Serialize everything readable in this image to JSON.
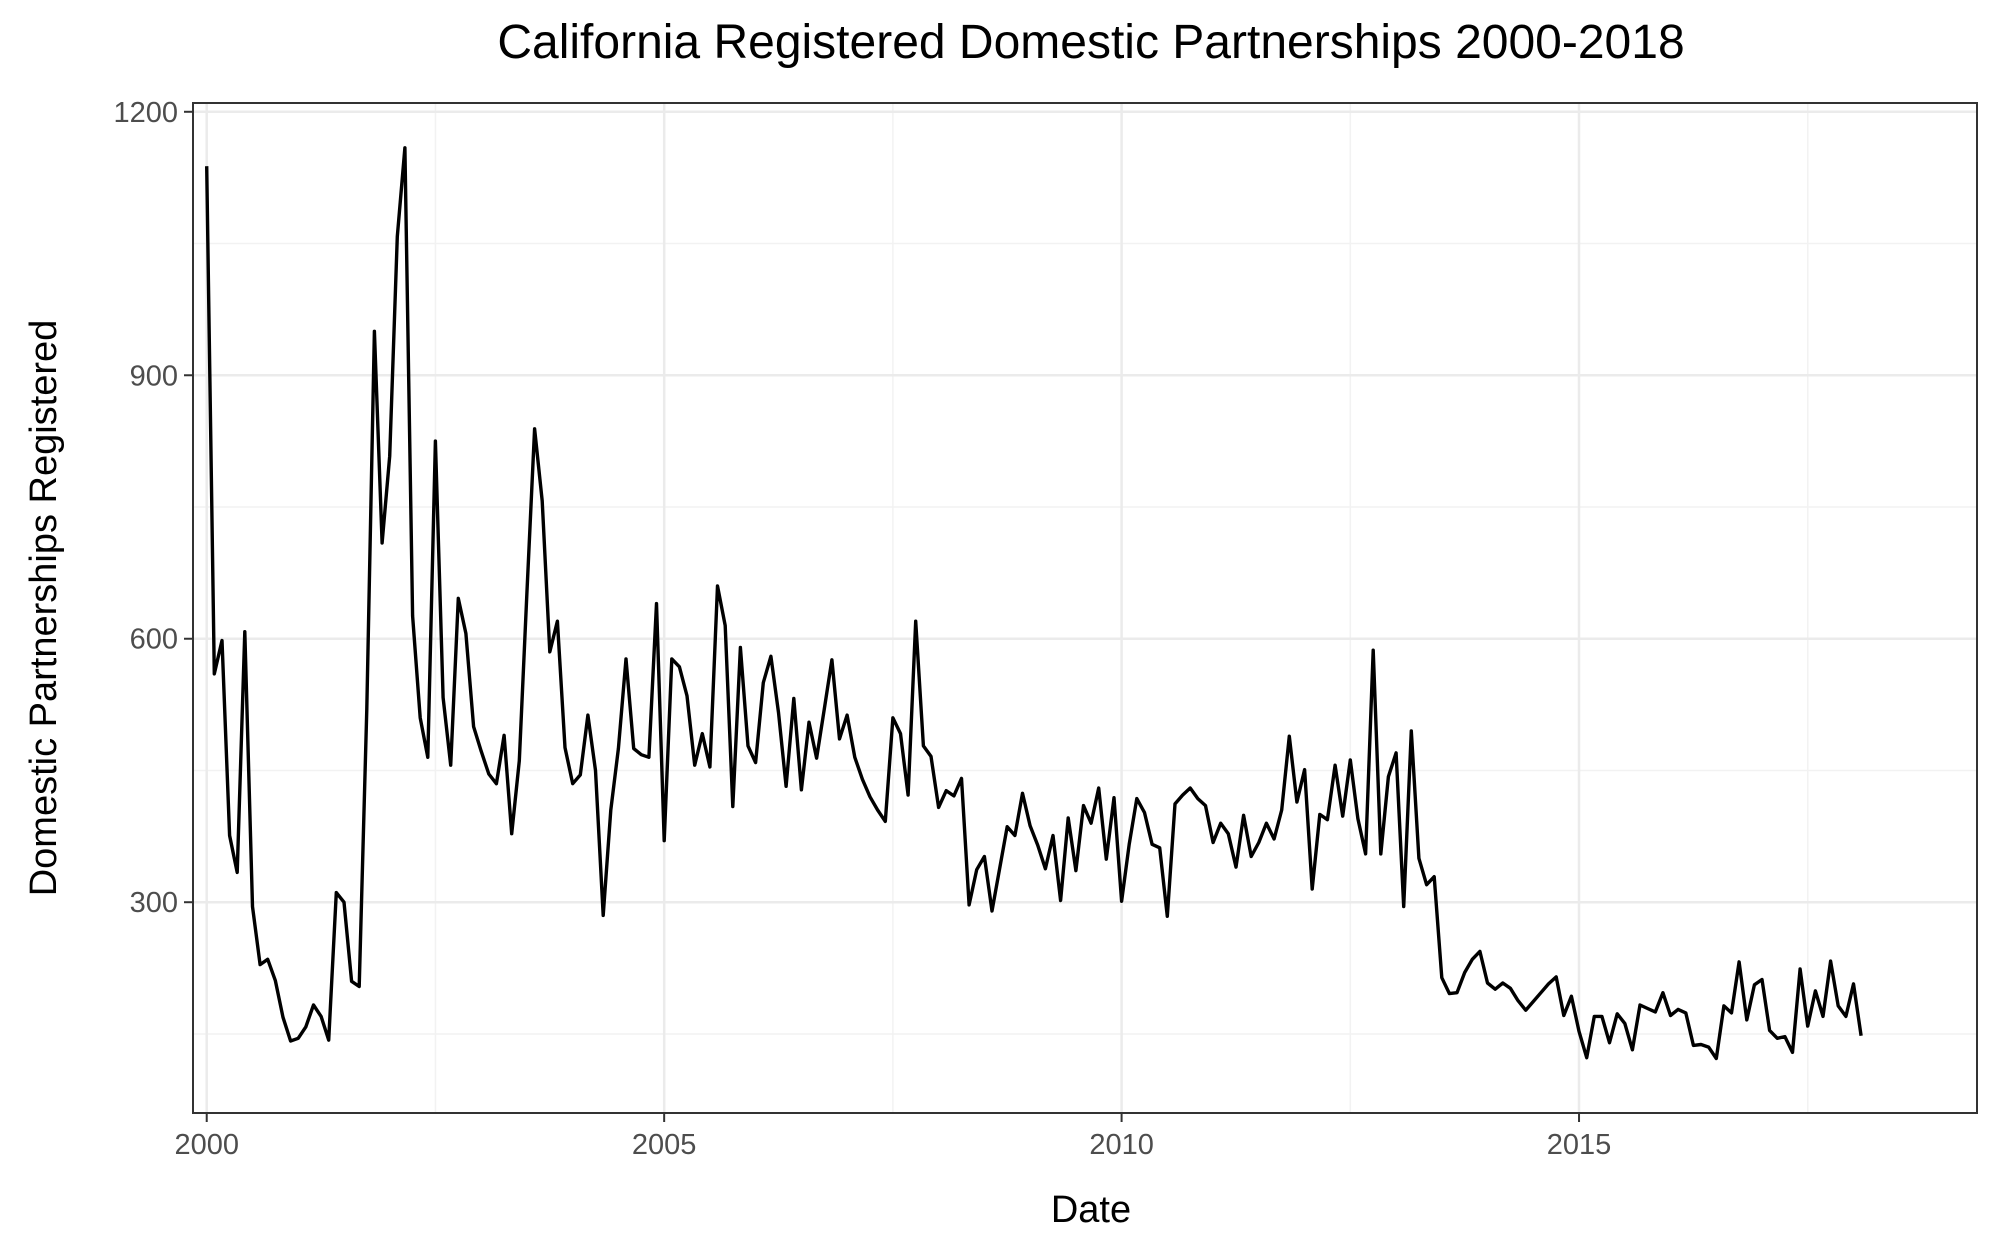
{
  "chart_data": {
    "type": "line",
    "title": "California Registered Domestic Partnerships 2000-2018",
    "xlabel": "Date",
    "ylabel": "Domestic Partnerships Registered",
    "x_ticks": [
      2000,
      2005,
      2010,
      2015
    ],
    "y_ticks": [
      300,
      600,
      900,
      1200
    ],
    "xlim": [
      1999.85,
      2019.35
    ],
    "ylim": [
      60,
      1210
    ],
    "grid": true,
    "legend": "none",
    "colors": {
      "line": "#000000",
      "panel_border": "#333333",
      "grid_major": "#ebebeb",
      "grid_minor": "#f2f2f2",
      "tick_label": "#4d4d4d"
    },
    "series": [
      {
        "x": [
          "2000-01",
          "2000-02",
          "2000-03",
          "2000-04",
          "2000-05",
          "2000-06",
          "2000-07",
          "2000-08",
          "2000-09",
          "2000-10",
          "2000-11",
          "2000-12",
          "2001-01",
          "2001-02",
          "2001-03",
          "2001-04",
          "2001-05",
          "2001-06",
          "2001-07",
          "2001-08",
          "2001-09",
          "2001-10",
          "2001-11",
          "2001-12",
          "2002-01",
          "2002-02",
          "2002-03",
          "2002-04",
          "2002-05",
          "2002-06",
          "2002-07",
          "2002-08",
          "2002-09",
          "2002-10",
          "2002-11",
          "2002-12",
          "2003-01",
          "2003-02",
          "2003-03",
          "2003-04",
          "2003-05",
          "2003-06",
          "2003-07",
          "2003-08",
          "2003-09",
          "2003-10",
          "2003-11",
          "2003-12",
          "2004-01",
          "2004-02",
          "2004-03",
          "2004-04",
          "2004-05",
          "2004-06",
          "2004-07",
          "2004-08",
          "2004-09",
          "2004-10",
          "2004-11",
          "2004-12",
          "2005-01",
          "2005-02",
          "2005-03",
          "2005-04",
          "2005-05",
          "2005-06",
          "2005-07",
          "2005-08",
          "2005-09",
          "2005-10",
          "2005-11",
          "2005-12",
          "2006-01",
          "2006-02",
          "2006-03",
          "2006-04",
          "2006-05",
          "2006-06",
          "2006-07",
          "2006-08",
          "2006-09",
          "2006-10",
          "2006-11",
          "2006-12",
          "2007-01",
          "2007-02",
          "2007-03",
          "2007-04",
          "2007-05",
          "2007-06",
          "2007-07",
          "2007-08",
          "2007-09",
          "2007-10",
          "2007-11",
          "2007-12",
          "2008-01",
          "2008-02",
          "2008-03",
          "2008-04",
          "2008-05",
          "2008-06",
          "2008-07",
          "2008-08",
          "2008-09",
          "2008-10",
          "2008-11",
          "2008-12",
          "2009-01",
          "2009-02",
          "2009-03",
          "2009-04",
          "2009-05",
          "2009-06",
          "2009-07",
          "2009-08",
          "2009-09",
          "2009-10",
          "2009-11",
          "2009-12",
          "2010-01",
          "2010-02",
          "2010-03",
          "2010-04",
          "2010-05",
          "2010-06",
          "2010-07",
          "2010-08",
          "2010-09",
          "2010-10",
          "2010-11",
          "2010-12",
          "2011-01",
          "2011-02",
          "2011-03",
          "2011-04",
          "2011-05",
          "2011-06",
          "2011-07",
          "2011-08",
          "2011-09",
          "2011-10",
          "2011-11",
          "2011-12",
          "2012-01",
          "2012-02",
          "2012-03",
          "2012-04",
          "2012-05",
          "2012-06",
          "2012-07",
          "2012-08",
          "2012-09",
          "2012-10",
          "2012-11",
          "2012-12",
          "2013-01",
          "2013-02",
          "2013-03",
          "2013-04",
          "2013-05",
          "2013-06",
          "2013-07",
          "2013-08",
          "2013-09",
          "2013-10",
          "2013-11",
          "2013-12",
          "2014-01",
          "2014-02",
          "2014-03",
          "2014-04",
          "2014-05",
          "2014-06",
          "2014-07",
          "2014-08",
          "2014-09",
          "2014-10",
          "2014-11",
          "2014-12",
          "2015-01",
          "2015-02",
          "2015-03",
          "2015-04",
          "2015-05",
          "2015-06",
          "2015-07",
          "2015-08",
          "2015-09",
          "2015-10",
          "2015-11",
          "2015-12",
          "2016-01",
          "2016-02",
          "2016-03",
          "2016-04",
          "2016-05",
          "2016-06",
          "2016-07",
          "2016-08",
          "2016-09",
          "2016-10",
          "2016-11",
          "2016-12",
          "2017-01",
          "2017-02",
          "2017-03",
          "2017-04",
          "2017-05",
          "2017-06",
          "2017-07",
          "2017-08",
          "2017-09",
          "2017-10",
          "2017-11",
          "2017-12",
          "2018-01",
          "2018-02"
        ],
        "values": [
          1138,
          560,
          598,
          376,
          334,
          608,
          295,
          229,
          235,
          211,
          169,
          142,
          145,
          158,
          183,
          170,
          143,
          311,
          300,
          210,
          204,
          520,
          950,
          709,
          808,
          1058,
          1159,
          626,
          510,
          465,
          825,
          533,
          456,
          646,
          606,
          500,
          472,
          446,
          435,
          490,
          378,
          461,
          652,
          839,
          757,
          585,
          620,
          476,
          435,
          445,
          513,
          450,
          285,
          405,
          475,
          577,
          475,
          468,
          465,
          640,
          370,
          577,
          568,
          535,
          456,
          492,
          454,
          660,
          615,
          409,
          590,
          478,
          459,
          550,
          580,
          516,
          432,
          532,
          428,
          505,
          464,
          520,
          576,
          486,
          513,
          465,
          440,
          420,
          405,
          392,
          510,
          492,
          422,
          620,
          478,
          466,
          408,
          427,
          421,
          441,
          297,
          337,
          352,
          290,
          338,
          386,
          376,
          424,
          387,
          365,
          338,
          376,
          302,
          396,
          336,
          410,
          390,
          430,
          349,
          419,
          301,
          366,
          418,
          402,
          366,
          362,
          284,
          412,
          422,
          430,
          418,
          410,
          368,
          390,
          378,
          340,
          399,
          352,
          368,
          390,
          372,
          405,
          489,
          414,
          451,
          315,
          400,
          394,
          456,
          398,
          462,
          395,
          355,
          587,
          355,
          443,
          470,
          295,
          495,
          350,
          320,
          329,
          214,
          196,
          197,
          220,
          235,
          244,
          208,
          201,
          208,
          202,
          188,
          177,
          187,
          197,
          207,
          215,
          171,
          193,
          153,
          123,
          170,
          170,
          140,
          173,
          162,
          132,
          183,
          179,
          175,
          197,
          171,
          178,
          174,
          137,
          138,
          135,
          122,
          182,
          174,
          232,
          166,
          206,
          212,
          154,
          145,
          147,
          129,
          224,
          159,
          199,
          170,
          233,
          182,
          170,
          207,
          148
        ]
      }
    ]
  }
}
